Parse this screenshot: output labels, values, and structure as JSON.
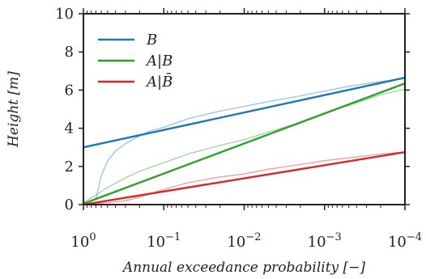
{
  "chart_data": {
    "type": "line",
    "xlabel": "Annual exceedance probability  [−]",
    "ylabel": "Height  [m]",
    "x_scale": "log",
    "x_reversed": true,
    "xlim": [
      1,
      0.0001
    ],
    "ylim": [
      0,
      10
    ],
    "yticks": [
      0,
      2,
      4,
      6,
      8,
      10
    ],
    "xticks": [
      {
        "value": 1,
        "base": "10",
        "exp": "0"
      },
      {
        "value": 0.1,
        "base": "10",
        "exp": "−1"
      },
      {
        "value": 0.01,
        "base": "10",
        "exp": "−2"
      },
      {
        "value": 0.001,
        "base": "10",
        "exp": "−3"
      },
      {
        "value": 0.0001,
        "base": "10",
        "exp": "−4"
      }
    ],
    "grid": false,
    "legend_position": "top-left",
    "series": [
      {
        "name": "B",
        "color": "#1f77b4",
        "fit": {
          "x": [
            1,
            0.0001
          ],
          "y": [
            3.0,
            6.65
          ]
        },
        "empirical": {
          "x": [
            0.7,
            0.6,
            0.5,
            0.4,
            0.3,
            0.2,
            0.15,
            0.1,
            0.05,
            0.02,
            0.01,
            0.005,
            0.002,
            0.001,
            0.0005,
            0.0002,
            0.0001
          ],
          "y": [
            0.3,
            1.5,
            2.3,
            2.8,
            3.2,
            3.6,
            3.85,
            4.05,
            4.5,
            4.9,
            5.15,
            5.4,
            5.7,
            5.95,
            6.2,
            6.45,
            6.6
          ]
        }
      },
      {
        "name": "A|B",
        "color": "#2ca02c",
        "fit": {
          "x": [
            1,
            0.0001
          ],
          "y": [
            0.05,
            6.35
          ]
        },
        "empirical": {
          "x": [
            1,
            0.7,
            0.5,
            0.3,
            0.2,
            0.1,
            0.05,
            0.02,
            0.01,
            0.005,
            0.002,
            0.001,
            0.0005,
            0.0002,
            0.0001
          ],
          "y": [
            0.1,
            0.5,
            0.9,
            1.4,
            1.75,
            2.2,
            2.65,
            3.1,
            3.4,
            3.8,
            4.3,
            4.8,
            5.2,
            5.75,
            6.05
          ]
        }
      },
      {
        "name": "A|B̄",
        "color": "#d62728",
        "fit": {
          "x": [
            1,
            0.0001
          ],
          "y": [
            0.0,
            2.75
          ]
        },
        "empirical": {
          "x": [
            1,
            0.5,
            0.3,
            0.2,
            0.1,
            0.05,
            0.02,
            0.01,
            0.005,
            0.002,
            0.001,
            0.0005,
            0.0002,
            0.0001
          ],
          "y": [
            0.0,
            0.1,
            0.2,
            0.4,
            0.8,
            1.15,
            1.45,
            1.6,
            1.85,
            2.1,
            2.3,
            2.45,
            2.65,
            2.75
          ]
        }
      }
    ]
  }
}
